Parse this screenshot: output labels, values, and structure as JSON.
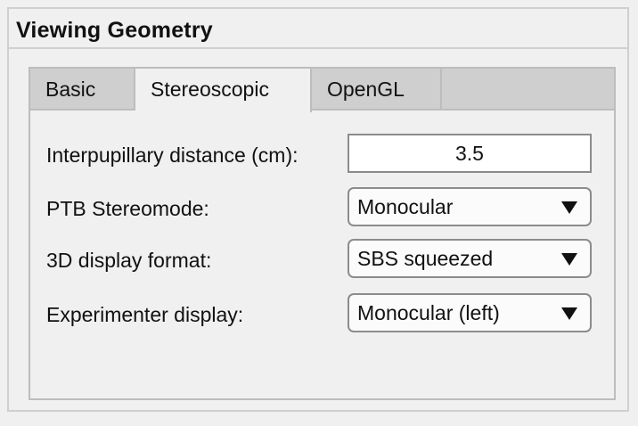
{
  "panel": {
    "title": "Viewing Geometry"
  },
  "tabs": [
    {
      "label": "Basic"
    },
    {
      "label": "Stereoscopic"
    },
    {
      "label": "OpenGL"
    }
  ],
  "stereo": {
    "ipd": {
      "label": "Interpupillary distance (cm):",
      "value": "3.5"
    },
    "stereomode": {
      "label": "PTB Stereomode:",
      "selected": "Monocular"
    },
    "display_format": {
      "label": "3D display format:",
      "selected": "SBS squeezed"
    },
    "experimenter_display": {
      "label": "Experimenter display:",
      "selected": "Monocular (left)"
    }
  }
}
